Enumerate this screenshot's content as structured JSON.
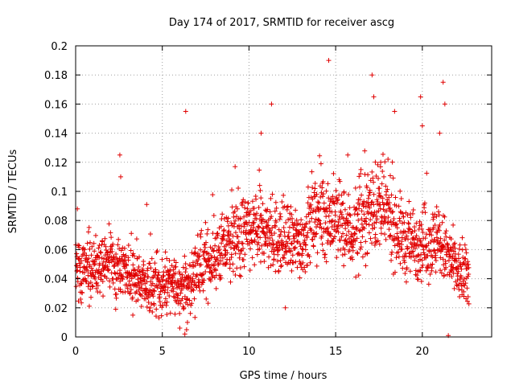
{
  "chart_data": {
    "type": "scatter",
    "title": "Day 174 of 2017, SRMTID for receiver ascg",
    "xlabel": "GPS time / hours",
    "ylabel": "SRMTID / TECUs",
    "xlim": [
      0,
      24
    ],
    "ylim": [
      0,
      0.2
    ],
    "xticks": [
      0,
      5,
      10,
      15,
      20
    ],
    "xtick_labels": [
      "0",
      "5",
      "10",
      "15",
      "20"
    ],
    "yticks": [
      0,
      0.02,
      0.04,
      0.06,
      0.08,
      0.1,
      0.12,
      0.14,
      0.16,
      0.18,
      0.2
    ],
    "ytick_labels": [
      "0",
      "0.02",
      "0.04",
      "0.06",
      "0.08",
      "0.1",
      "0.12",
      "0.14",
      "0.16",
      "0.18",
      "0.2"
    ],
    "grid": true,
    "marker": "+",
    "color": "#e00000",
    "series": [
      {
        "name": "SRMTID",
        "trend": {
          "x": [
            0,
            1,
            2,
            2.5,
            3,
            4,
            5,
            6,
            6.5,
            7,
            8,
            9,
            10,
            11,
            12,
            13,
            14,
            15,
            16,
            17,
            18,
            19,
            20,
            21,
            21.5,
            22,
            22.7
          ],
          "y": [
            0.05,
            0.045,
            0.05,
            0.05,
            0.045,
            0.035,
            0.035,
            0.035,
            0.035,
            0.045,
            0.055,
            0.065,
            0.072,
            0.072,
            0.065,
            0.065,
            0.085,
            0.08,
            0.07,
            0.09,
            0.085,
            0.065,
            0.065,
            0.065,
            0.055,
            0.045,
            0.04
          ]
        },
        "outliers": {
          "x": [
            0.1,
            2.55,
            2.6,
            6.35,
            6.4,
            10.7,
            11.3,
            14.6,
            17.1,
            17.2,
            18.4,
            19.9,
            20.0,
            21.0,
            21.2,
            21.3,
            21.5,
            6.3,
            6.45,
            3.3,
            4.1,
            12.1,
            17.6,
            9.2,
            15.7
          ],
          "y": [
            0.088,
            0.125,
            0.11,
            0.155,
            0.005,
            0.14,
            0.16,
            0.19,
            0.18,
            0.165,
            0.155,
            0.165,
            0.145,
            0.14,
            0.175,
            0.16,
            0.001,
            0.002,
            0.01,
            0.015,
            0.091,
            0.02,
            0.12,
            0.117,
            0.125
          ]
        }
      }
    ]
  }
}
